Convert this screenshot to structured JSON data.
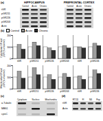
{
  "panel_a": {
    "label": "(a)",
    "regions": [
      "HIPPOCAMPUS",
      "PREFRONTAL CORTEX"
    ],
    "lanes": [
      "Control",
      "Acute",
      "Chronic"
    ],
    "rows": [
      "tGR",
      "pGR211",
      "pGR226",
      "pGR203",
      "Actin"
    ]
  },
  "panel_b_label": "(b)",
  "chart_data": [
    {
      "type": "bar",
      "y_label": "Cytoplasmic GR and pGR (% of control)",
      "categories": [
        "tGR",
        "pGR211",
        "pGR226",
        "pGR203",
        "tGR",
        "pGR226"
      ],
      "series": [
        {
          "name": "Control",
          "color": "#ffffff",
          "values": [
            100,
            100,
            100,
            100,
            100,
            100
          ]
        },
        {
          "name": "Acute",
          "color": "#9e9e9e",
          "values": [
            120,
            140,
            90,
            110,
            100,
            130
          ]
        },
        {
          "name": "Chronic",
          "color": "#303030",
          "values": [
            80,
            110,
            70,
            90,
            90,
            110
          ]
        }
      ],
      "ylim": [
        0,
        200
      ],
      "yticks": [
        0,
        100,
        200
      ]
    },
    {
      "type": "bar",
      "y_label": "Mitochondrial GR and pGR (% of control)",
      "categories": [
        "tGR",
        "pGR211",
        "pGR226",
        "pGR203",
        "tGR",
        "pGR226"
      ],
      "series": [
        {
          "name": "Control",
          "color": "#ffffff",
          "values": [
            100,
            100,
            100,
            100,
            100,
            100
          ]
        },
        {
          "name": "Acute",
          "color": "#9e9e9e",
          "values": [
            150,
            180,
            120,
            130,
            110,
            160
          ]
        },
        {
          "name": "Chronic",
          "color": "#303030",
          "values": [
            90,
            120,
            80,
            100,
            80,
            130
          ]
        }
      ],
      "ylim": [
        0,
        200
      ],
      "yticks": [
        0,
        100,
        200
      ]
    }
  ],
  "panel_c": {
    "label": "(c)",
    "columns": [
      "Cytoplasm",
      "Nucleus",
      "Mitochondria"
    ],
    "rows": [
      "α-Tubulin",
      "MBS1",
      "cytoC"
    ]
  },
  "panel_d": {
    "label": "(d)",
    "lanes": [
      "RT111",
      "FI",
      "NS",
      "Pep"
    ],
    "rows": [
      "tGR",
      "Actin"
    ]
  }
}
